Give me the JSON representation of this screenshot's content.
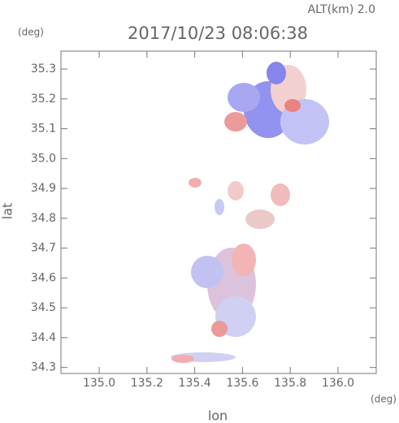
{
  "chart_data": {
    "type": "map",
    "title": "2017/10/23 08:06:38",
    "subtitle": "ALT(km) 2.0",
    "x_label": "lon",
    "y_label": "lat",
    "x_unit": "(deg)",
    "y_unit": "(deg)",
    "xlim": [
      134.84,
      136.16
    ],
    "xticks": [
      {
        "value": 135,
        "label": "135.0"
      },
      135.2,
      135.4,
      135.6,
      135.8,
      {
        "value": 136,
        "label": "136.0"
      }
    ],
    "ylim": [
      34.28,
      35.36
    ],
    "yticks": [
      34.3,
      34.4,
      34.5,
      34.6,
      34.7,
      34.8,
      34.9,
      {
        "value": 35,
        "label": "35.0"
      },
      35.1,
      35.2,
      35.3
    ]
  }
}
